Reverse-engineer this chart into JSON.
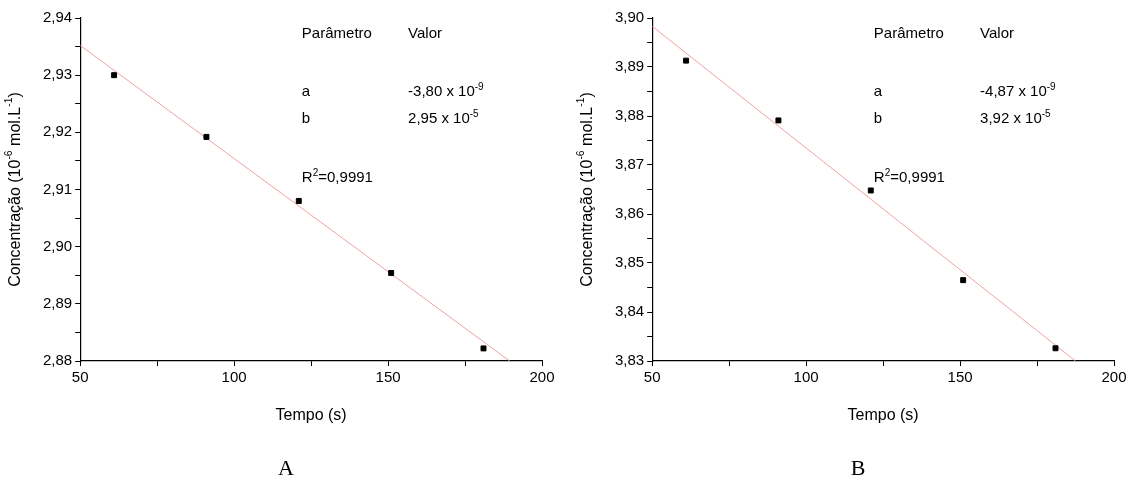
{
  "chart_data": [
    {
      "type": "scatter",
      "xlabel": "Tempo (s)",
      "ylabel": "Concentração (10$^{-6}$ mol.L$^{-1}$)",
      "x": [
        61,
        91,
        121,
        151,
        181
      ],
      "series": [
        {
          "color": "#000000",
          "marker": "square",
          "values": [
            2.93,
            2.9192,
            2.908,
            2.8954,
            2.8822
          ]
        },
        {
          "type": "line",
          "color": "#f4a0a0",
          "marker": "none",
          "x": [
            50,
            189.5
          ],
          "values": [
            2.9352,
            2.88
          ]
        }
      ],
      "xlim": [
        50,
        200
      ],
      "xticks": [
        50,
        {
          "value": 75,
          "label": null
        },
        100,
        {
          "value": 125,
          "label": null
        },
        150,
        {
          "value": 175,
          "label": null
        },
        200
      ],
      "ylim": [
        2.88,
        2.94
      ],
      "yticks": [
        {
          "value": 2.88,
          "label": "2,88"
        },
        {
          "value": 2.885,
          "label": null
        },
        {
          "value": 2.89,
          "label": "2,89"
        },
        {
          "value": 2.895,
          "label": null
        },
        {
          "value": 2.9,
          "label": "2,90"
        },
        {
          "value": 2.905,
          "label": null
        },
        {
          "value": 2.91,
          "label": "2,91"
        },
        {
          "value": 2.915,
          "label": null
        },
        {
          "value": 2.92,
          "label": "2,92"
        },
        {
          "value": 2.925,
          "label": null
        },
        {
          "value": 2.93,
          "label": "2,93"
        },
        {
          "value": 2.935,
          "label": null
        },
        {
          "value": 2.94,
          "label": "2,94"
        }
      ],
      "annotations": [
        "Parâmetro",
        "Valor",
        "a",
        "-3,80 x 10$^{-9}$",
        "b",
        "2,95 x 10$^{-5}$",
        "R$^{2}$=0,9991",
        "A"
      ],
      "grid": false,
      "legend": false
    },
    {
      "type": "scatter",
      "xlabel": "Tempo (s)",
      "ylabel": "Concentração (10$^{-6}$ mol.L$^{-1}$)",
      "x": [
        61,
        91,
        121,
        151,
        181
      ],
      "series": [
        {
          "color": "#000000",
          "marker": "square",
          "values": [
            3.8913,
            3.8791,
            3.8648,
            3.8465,
            3.8326
          ]
        },
        {
          "type": "line",
          "color": "#f4a0a0",
          "marker": "none",
          "x": [
            50,
            187.5
          ],
          "values": [
            3.8983,
            3.83
          ]
        }
      ],
      "xlim": [
        50,
        200
      ],
      "xticks": [
        50,
        {
          "value": 75,
          "label": null
        },
        100,
        {
          "value": 125,
          "label": null
        },
        150,
        {
          "value": 175,
          "label": null
        },
        200
      ],
      "ylim": [
        3.83,
        3.9
      ],
      "yticks": [
        {
          "value": 3.83,
          "label": "3,83"
        },
        {
          "value": 3.835,
          "label": null
        },
        {
          "value": 3.84,
          "label": "3,84"
        },
        {
          "value": 3.845,
          "label": null
        },
        {
          "value": 3.85,
          "label": "3,85"
        },
        {
          "value": 3.855,
          "label": null
        },
        {
          "value": 3.86,
          "label": "3,86"
        },
        {
          "value": 3.865,
          "label": null
        },
        {
          "value": 3.87,
          "label": "3,87"
        },
        {
          "value": 3.875,
          "label": null
        },
        {
          "value": 3.88,
          "label": "3,88"
        },
        {
          "value": 3.885,
          "label": null
        },
        {
          "value": 3.89,
          "label": "3,89"
        },
        {
          "value": 3.895,
          "label": null
        },
        {
          "value": 3.9,
          "label": "3,90"
        }
      ],
      "annotations": [
        "Parâmetro",
        "Valor",
        "a",
        "-4,87 x 10$^{-9}$",
        "b",
        "3,92 x 10$^{-5}$",
        "R$^{2}$=0,9991",
        "B"
      ],
      "grid": false,
      "legend": false
    }
  ]
}
